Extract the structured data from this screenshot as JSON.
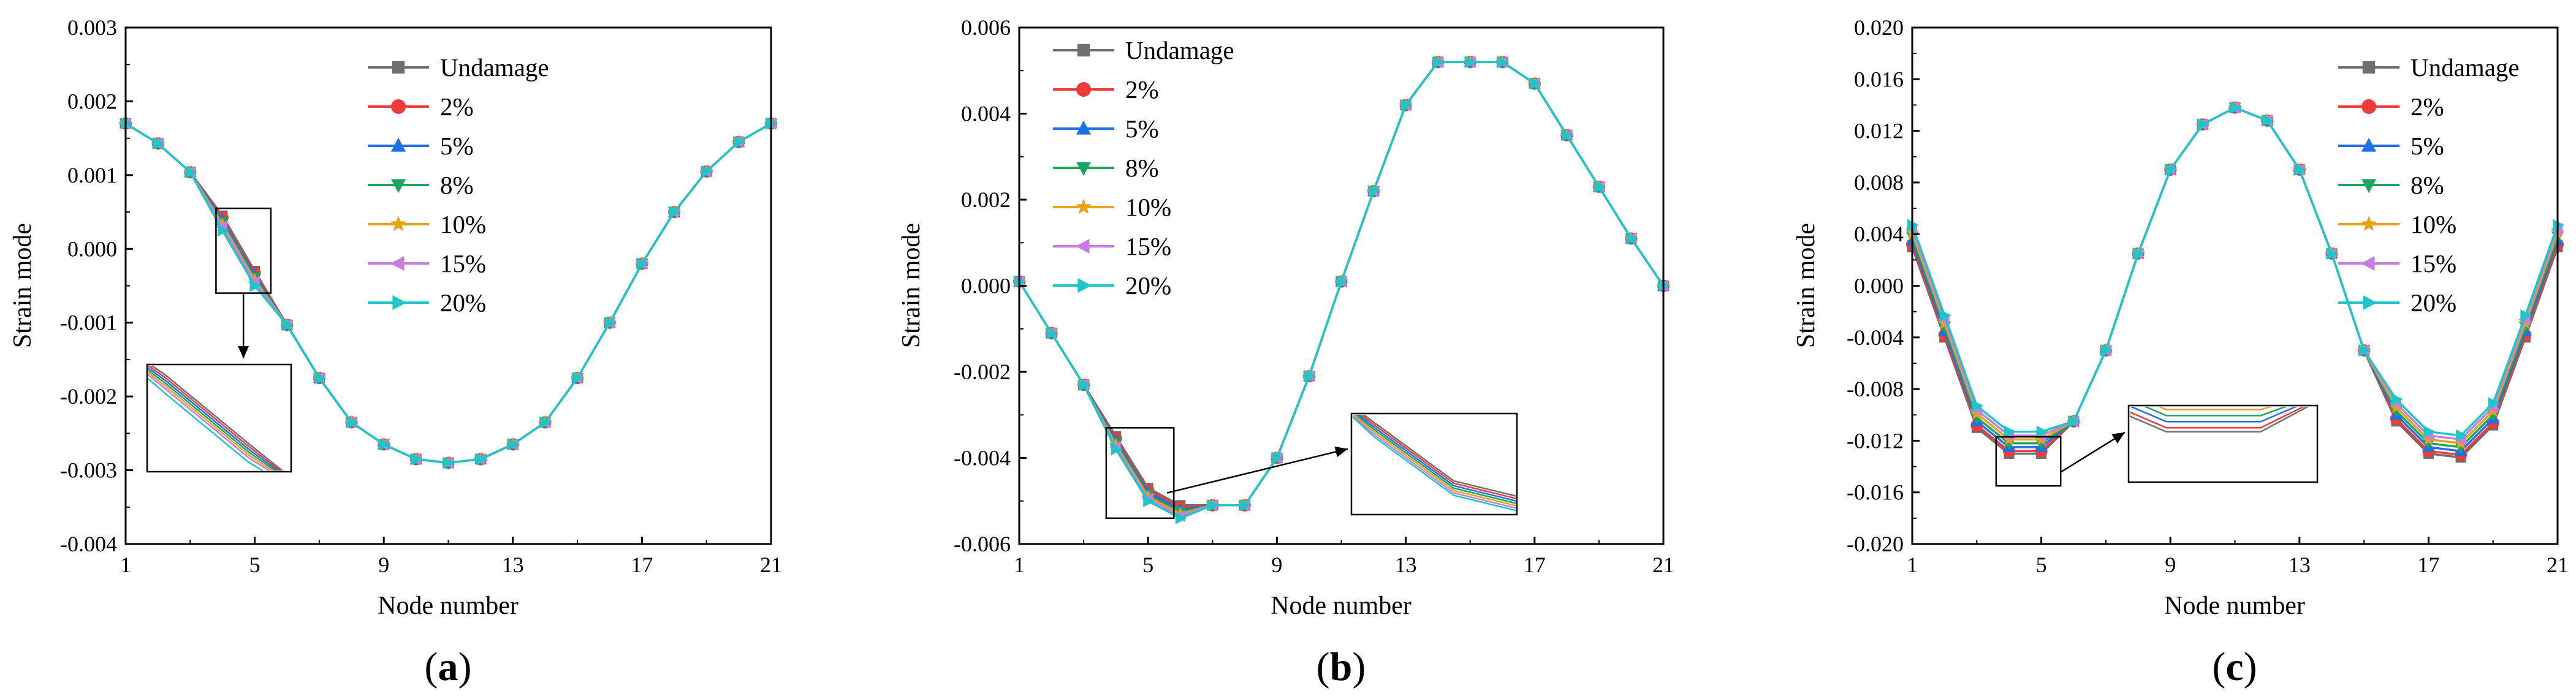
{
  "figure": {
    "series_names": [
      "Undamage",
      "2%",
      "5%",
      "8%",
      "10%",
      "15%",
      "20%"
    ],
    "series_colors": [
      "#6e6e6e",
      "#ee3b3b",
      "#1f6fe5",
      "#1aa564",
      "#e8a21a",
      "#c87ee0",
      "#1ec6c8"
    ],
    "series_markers": [
      "square",
      "circle",
      "triangle-up",
      "triangle-down",
      "star",
      "triangle-left",
      "triangle-right"
    ],
    "xlabel": "Node number",
    "ylabel": "Strain mode"
  },
  "chart_data": [
    {
      "type": "line",
      "label": "a",
      "xlabel": "Node number",
      "ylabel": "Strain mode",
      "xlim": [
        1,
        21
      ],
      "ylim": [
        -0.004,
        0.003
      ],
      "xticks": [
        1,
        5,
        9,
        13,
        17,
        21
      ],
      "yticks": [
        -0.004,
        -0.003,
        -0.002,
        -0.001,
        0.0,
        0.001,
        0.002,
        0.003
      ],
      "ytick_labels": [
        "-0.004",
        "-0.003",
        "-0.002",
        "-0.001",
        "0.000",
        "0.001",
        "0.002",
        "0.003"
      ],
      "x": [
        1,
        2,
        3,
        4,
        5,
        6,
        7,
        8,
        9,
        10,
        11,
        12,
        13,
        14,
        15,
        16,
        17,
        18,
        19,
        20,
        21
      ],
      "base": [
        0.0017,
        0.00143,
        0.00104,
        0.00045,
        -0.0003,
        -0.00103,
        -0.00175,
        -0.00235,
        -0.00265,
        -0.00285,
        -0.0029,
        -0.00285,
        -0.00265,
        -0.00235,
        -0.00175,
        -0.001,
        -0.0002,
        0.0005,
        0.00105,
        0.00145,
        0.0017
      ],
      "deviation_nodes": [
        4,
        5
      ],
      "deviation_steps": [
        0,
        3e-05,
        6e-05,
        9e-05,
        0.00012,
        0.00015,
        0.0002
      ],
      "series": [
        {
          "name": "Undamage"
        },
        {
          "name": "2%"
        },
        {
          "name": "5%"
        },
        {
          "name": "8%"
        },
        {
          "name": "10%"
        },
        {
          "name": "15%"
        },
        {
          "name": "20%"
        }
      ],
      "legend_position": "top-center"
    },
    {
      "type": "line",
      "label": "b",
      "xlabel": "Node number",
      "ylabel": "Strain mode",
      "xlim": [
        1,
        21
      ],
      "ylim": [
        -0.006,
        0.006
      ],
      "xticks": [
        1,
        5,
        9,
        13,
        17,
        21
      ],
      "yticks": [
        -0.006,
        -0.004,
        -0.002,
        0.0,
        0.002,
        0.004,
        0.006
      ],
      "ytick_labels": [
        "-0.006",
        "-0.004",
        "-0.002",
        "0.000",
        "0.002",
        "0.004",
        "0.006"
      ],
      "x": [
        1,
        2,
        3,
        4,
        5,
        6,
        7,
        8,
        9,
        10,
        11,
        12,
        13,
        14,
        15,
        16,
        17,
        18,
        19,
        20,
        21
      ],
      "base": [
        0.0001,
        -0.0011,
        -0.0023,
        -0.0035,
        -0.0047,
        -0.0051,
        -0.0051,
        -0.0051,
        -0.004,
        -0.0021,
        0.0001,
        0.0022,
        0.0042,
        0.0052,
        0.0052,
        0.0052,
        0.0047,
        0.0035,
        0.0023,
        0.0011,
        0.0
      ],
      "deviation_nodes": [
        4,
        5,
        6
      ],
      "deviation_steps": [
        0,
        5e-05,
        0.0001,
        0.00015,
        0.0002,
        0.00025,
        0.0003
      ],
      "series": [
        {
          "name": "Undamage"
        },
        {
          "name": "2%"
        },
        {
          "name": "5%"
        },
        {
          "name": "8%"
        },
        {
          "name": "10%"
        },
        {
          "name": "15%"
        },
        {
          "name": "20%"
        }
      ],
      "legend_position": "top-left"
    },
    {
      "type": "line",
      "label": "c",
      "xlabel": "Node number",
      "ylabel": "Strain mode",
      "xlim": [
        1,
        21
      ],
      "ylim": [
        -0.02,
        0.02
      ],
      "xticks": [
        1,
        5,
        9,
        13,
        17,
        21
      ],
      "yticks": [
        -0.02,
        -0.016,
        -0.012,
        -0.008,
        -0.004,
        0.0,
        0.004,
        0.008,
        0.012,
        0.016,
        0.02
      ],
      "ytick_labels": [
        "-0.020",
        "-0.016",
        "-0.012",
        "-0.008",
        "-0.004",
        "0.000",
        "0.004",
        "0.008",
        "0.012",
        "0.016",
        "0.020"
      ],
      "x": [
        1,
        2,
        3,
        4,
        5,
        6,
        7,
        8,
        9,
        10,
        11,
        12,
        13,
        14,
        15,
        16,
        17,
        18,
        19,
        20,
        21
      ],
      "base": [
        0.003,
        -0.004,
        -0.011,
        -0.013,
        -0.013,
        -0.0105,
        -0.005,
        0.0025,
        0.009,
        0.0125,
        0.0138,
        0.0128,
        0.009,
        0.0025,
        -0.005,
        -0.0105,
        -0.013,
        -0.0133,
        -0.0108,
        -0.004,
        0.003
      ],
      "deviation_nodes": [
        1,
        2,
        3,
        4,
        5,
        16,
        17,
        18,
        19,
        20,
        21
      ],
      "deviation_steps": [
        0,
        -0.0002,
        -0.0005,
        -0.0008,
        -0.0011,
        -0.0014,
        -0.0017
      ],
      "series": [
        {
          "name": "Undamage"
        },
        {
          "name": "2%"
        },
        {
          "name": "5%"
        },
        {
          "name": "8%"
        },
        {
          "name": "10%"
        },
        {
          "name": "15%"
        },
        {
          "name": "20%"
        }
      ],
      "legend_position": "top-right"
    }
  ]
}
